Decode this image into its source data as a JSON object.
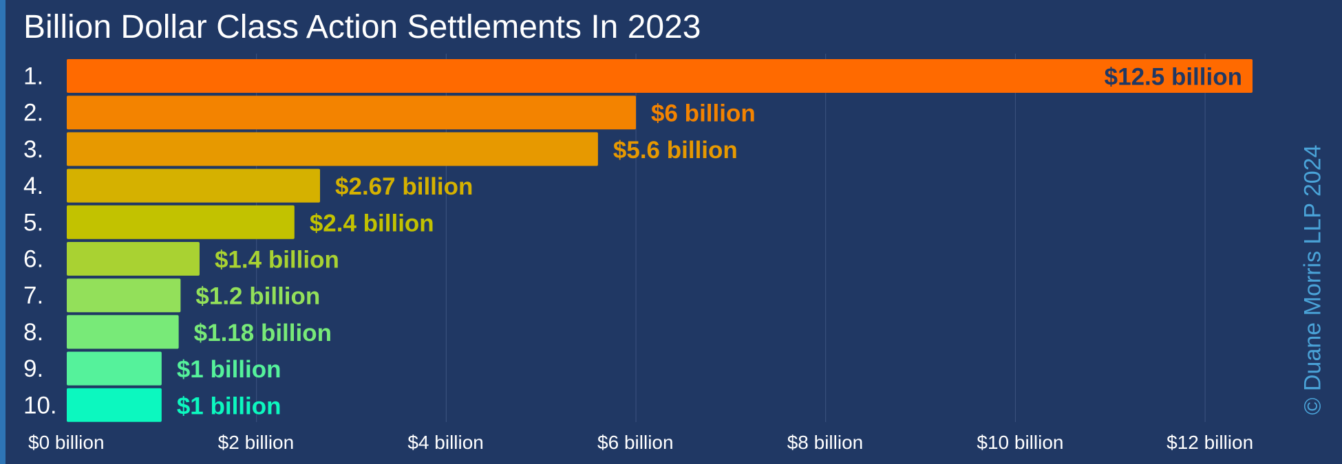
{
  "title": "Billion Dollar Class Action Settlements In 2023",
  "copyright": "© Duane Morris LLP 2024",
  "chart_data": {
    "type": "bar",
    "orientation": "horizontal",
    "title": "Billion Dollar Class Action Settlements In 2023",
    "xlabel": "",
    "ylabel": "",
    "xlim": [
      0,
      12.5
    ],
    "grid": true,
    "legend": "none",
    "categories": [
      "1.",
      "2.",
      "3.",
      "4.",
      "5.",
      "6.",
      "7.",
      "8.",
      "9.",
      "10."
    ],
    "values": [
      12.5,
      6,
      5.6,
      2.67,
      2.4,
      1.4,
      1.2,
      1.18,
      1,
      1
    ],
    "data_labels": [
      "$12.5 billion",
      "$6 billion",
      "$5.6 billion",
      "$2.67 billion",
      "$2.4 billion",
      "$1.4 billion",
      "$1.2 billion",
      "$1.18 billion",
      "$1 billion",
      "$1 billion"
    ],
    "bar_colors": [
      "#ff6a00",
      "#f38300",
      "#e79900",
      "#d5b100",
      "#c2c200",
      "#a9d232",
      "#93e05a",
      "#78ea78",
      "#55f29b",
      "#0cf8bf"
    ],
    "label_colors": [
      "#203864",
      "#f38300",
      "#e79900",
      "#d5b100",
      "#c2c200",
      "#a9d232",
      "#93e05a",
      "#78ea78",
      "#55f29b",
      "#0cf8bf"
    ],
    "ticks": [
      0,
      2,
      4,
      6,
      8,
      10,
      12
    ],
    "tick_labels": [
      "$0 billion",
      "$2 billion",
      "$4 billion",
      "$6 billion",
      "$8 billion",
      "$10 billion",
      "$12 billion"
    ]
  },
  "colors": {
    "background": "#203864",
    "accent": "#2e75b6",
    "grid": "#3d5480",
    "text": "#ffffff",
    "copyright": "#4aa3d8"
  }
}
